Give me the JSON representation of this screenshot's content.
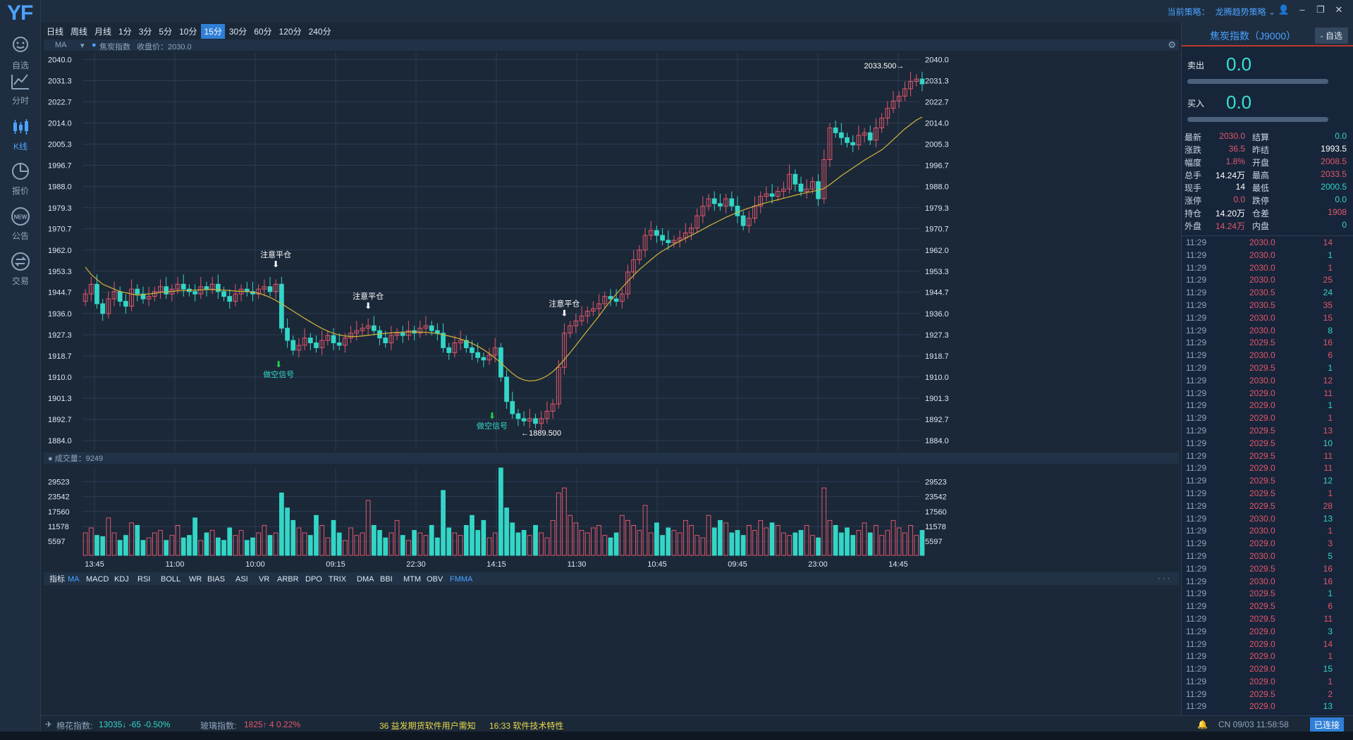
{
  "app": {
    "logo": "YF"
  },
  "rail": [
    {
      "label": "自选",
      "icon": "smiley-icon"
    },
    {
      "label": "分时",
      "icon": "line-chart-icon"
    },
    {
      "label": "K线",
      "icon": "candlestick-icon"
    },
    {
      "label": "报价",
      "icon": "pie-chart-icon"
    },
    {
      "label": "公告",
      "icon": "new-badge-icon"
    },
    {
      "label": "交易",
      "icon": "exchange-icon"
    }
  ],
  "topbar": {
    "strategy_label": "当前策略：",
    "strategy_value": "龙腾趋势策略",
    "win_user": "👤",
    "win_min": "–",
    "win_max": "❐",
    "win_close": "✕"
  },
  "periods": [
    "日线",
    "周线",
    "月线",
    "1分",
    "3分",
    "5分",
    "10分",
    "15分",
    "30分",
    "60分",
    "120分",
    "240分"
  ],
  "active_period": "15分",
  "ma_row": {
    "label": "MA",
    "title": "焦炭指数",
    "close_label": "收盘价：2030.0"
  },
  "indicators": [
    "指标",
    "MA",
    "MACD",
    "KDJ",
    "RSI",
    "BOLL",
    "WR",
    "BIAS",
    "ASI",
    "VR",
    "ARBR",
    "DPO",
    "TRIX",
    "DMA",
    "BBI",
    "MTM",
    "OBV",
    "FMMA"
  ],
  "volume_header": "成交量：9249",
  "chart_data": {
    "type": "candlestick",
    "title": "焦炭指数",
    "y_ticks": [
      2040.0,
      2031.3,
      2022.7,
      2014.0,
      2005.3,
      1996.7,
      1988.0,
      1979.3,
      1970.7,
      1962.0,
      1953.3,
      1944.7,
      1936.0,
      1927.3,
      1918.7,
      1910.0,
      1901.3,
      1892.7,
      1884.0
    ],
    "ylim": [
      1880,
      2043
    ],
    "x_labels": [
      "13:45",
      "11:00",
      "10:00",
      "09:15",
      "22:30",
      "14:15",
      "11:30",
      "10:45",
      "09:45",
      "23:00",
      "14:45"
    ],
    "vol_ticks": [
      29523,
      23542,
      17560,
      11578,
      5597
    ],
    "vol_max": 35000,
    "annotations": [
      {
        "text": "注意平仓",
        "idx": 33,
        "kind": "close"
      },
      {
        "text": "做空信号",
        "idx": 33,
        "kind": "short"
      },
      {
        "text": "注意平仓",
        "idx": 49,
        "kind": "close"
      },
      {
        "text": "做空信号",
        "idx": 70,
        "kind": "short"
      },
      {
        "text": "注意平仓",
        "idx": 83,
        "kind": "close"
      }
    ],
    "high_label": "2033.500→",
    "low_label": "←1889.500",
    "closes": [
      1944,
      1948,
      1940,
      1936,
      1942,
      1945,
      1941,
      1939,
      1946,
      1944,
      1942,
      1943,
      1945,
      1947,
      1944,
      1946,
      1948,
      1946,
      1945,
      1944,
      1947,
      1946,
      1948,
      1945,
      1943,
      1941,
      1944,
      1946,
      1945,
      1944,
      1946,
      1947,
      1945,
      1948,
      1930,
      1925,
      1921,
      1923,
      1926,
      1924,
      1922,
      1925,
      1927,
      1924,
      1923,
      1926,
      1928,
      1929,
      1930,
      1931,
      1929,
      1926,
      1924,
      1927,
      1928,
      1927,
      1929,
      1928,
      1930,
      1931,
      1929,
      1928,
      1922,
      1920,
      1924,
      1925,
      1922,
      1920,
      1918,
      1917,
      1919,
      1922,
      1910,
      1900,
      1895,
      1893,
      1892,
      1893,
      1891,
      1893,
      1896,
      1899,
      1914,
      1928,
      1931,
      1933,
      1935,
      1937,
      1938,
      1940,
      1943,
      1942,
      1941,
      1944,
      1953,
      1958,
      1962,
      1968,
      1970,
      1968,
      1966,
      1965,
      1966,
      1967,
      1969,
      1971,
      1976,
      1980,
      1983,
      1981,
      1980,
      1983,
      1980,
      1976,
      1972,
      1975,
      1980,
      1984,
      1985,
      1984,
      1986,
      1987,
      1993,
      1989,
      1986,
      1987,
      1990,
      1983,
      1999,
      2012,
      2010,
      2008,
      2006,
      2005,
      2009,
      2010,
      2007,
      2012,
      2016,
      2020,
      2023,
      2025,
      2028,
      2031,
      2032,
      2030
    ],
    "ma": [
      1955,
      1952,
      1950,
      1948,
      1947,
      1946,
      1945,
      1944.5,
      1944,
      1943.5,
      1943.8,
      1944,
      1944.3,
      1944.6,
      1944.9,
      1945.1,
      1945.3,
      1945.4,
      1945.5,
      1945.6,
      1945.7,
      1945.8,
      1945.8,
      1945.7,
      1945.6,
      1945.4,
      1945.2,
      1945.1,
      1945.0,
      1944.8,
      1944.3,
      1943.6,
      1942.6,
      1941.4,
      1940.0,
      1938.5,
      1937.0,
      1935.5,
      1934.0,
      1932.6,
      1931.2,
      1929.9,
      1928.8,
      1927.9,
      1927.2,
      1926.8,
      1926.6,
      1926.6,
      1926.8,
      1927.1,
      1927.4,
      1927.7,
      1927.9,
      1928.1,
      1928.3,
      1928.4,
      1928.5,
      1928.5,
      1928.4,
      1928.3,
      1928.1,
      1927.8,
      1927.3,
      1926.8,
      1926.2,
      1925.6,
      1924.8,
      1923.8,
      1922.6,
      1921.2,
      1919.6,
      1917.8,
      1915.8,
      1913.6,
      1911.5,
      1909.8,
      1908.8,
      1908.4,
      1908.6,
      1909.3,
      1910.5,
      1912.2,
      1914.5,
      1917.2,
      1920.0,
      1923.0,
      1926.0,
      1929.0,
      1932.0,
      1935.0,
      1938.2,
      1941.2,
      1944.0,
      1946.6,
      1949.2,
      1951.6,
      1954.0,
      1956.0,
      1958.0,
      1960.0,
      1961.6,
      1963.0,
      1964.4,
      1965.6,
      1966.8,
      1968.0,
      1969.2,
      1970.5,
      1971.8,
      1973.0,
      1974.2,
      1975.4,
      1976.4,
      1977.4,
      1978.4,
      1979.2,
      1980.0,
      1980.7,
      1981.4,
      1982.0,
      1982.6,
      1983.2,
      1983.8,
      1984.4,
      1985.0,
      1985.5,
      1986.0,
      1986.5,
      1987.2,
      1988.8,
      1990.6,
      1992.4,
      1994.0,
      1995.6,
      1997.2,
      1998.8,
      2000.2,
      2001.6,
      2003.0,
      2005.0,
      2007.2,
      2009.4,
      2011.6,
      2013.4,
      2015.2,
      2016.4
    ],
    "volumes": [
      9000,
      11000,
      8000,
      7500,
      15000,
      9000,
      6000,
      8000,
      13000,
      12000,
      6000,
      7000,
      9000,
      10000,
      6000,
      8000,
      12000,
      7000,
      8000,
      15000,
      6000,
      9000,
      10000,
      7000,
      6000,
      11000,
      8000,
      10000,
      6000,
      7000,
      9000,
      12000,
      8000,
      9000,
      25000,
      19000,
      14000,
      11000,
      9000,
      8000,
      16000,
      12000,
      7000,
      14000,
      9000,
      6000,
      11000,
      8000,
      9000,
      22000,
      12000,
      10000,
      7000,
      9000,
      14000,
      8000,
      6000,
      10000,
      9000,
      8000,
      12000,
      7000,
      26000,
      11000,
      9000,
      8000,
      12000,
      16000,
      10000,
      14000,
      7000,
      9000,
      35000,
      19000,
      13000,
      9000,
      10000,
      8000,
      12000,
      9000,
      7000,
      14000,
      25000,
      27000,
      16000,
      13000,
      10000,
      9000,
      11000,
      12000,
      8000,
      7000,
      9000,
      16000,
      14000,
      12000,
      10000,
      20000,
      9000,
      13000,
      8000,
      11000,
      10000,
      9000,
      14000,
      12000,
      8000,
      7000,
      16000,
      11000,
      14000,
      13000,
      9000,
      10000,
      8000,
      12000,
      10000,
      14000,
      11000,
      13000,
      12000,
      9000,
      8000,
      9000,
      10000,
      12000,
      8000,
      7000,
      27000,
      14000,
      12000,
      9000,
      11000,
      8000,
      10000,
      13000,
      9000,
      12000,
      8000,
      10000,
      14000,
      11000,
      9000,
      12000,
      8000,
      10000
    ]
  },
  "quote": {
    "title": "焦炭指数（J9000）",
    "btn": "- 自选",
    "sell_label": "卖出",
    "sell_val": "0.0",
    "buy_label": "买入",
    "buy_val": "0.0",
    "stats": [
      [
        "最新",
        "2030.0",
        "结算",
        "0.0"
      ],
      [
        "涨跌",
        "36.5",
        "昨结",
        "1993.5"
      ],
      [
        "幅度",
        "1.8%",
        "开盘",
        "2008.5"
      ],
      [
        "总手",
        "14.24万",
        "最高",
        "2033.5"
      ],
      [
        "现手",
        "14",
        "最低",
        "2000.5"
      ],
      [
        "涨停",
        "0.0",
        "跌停",
        "0.0"
      ],
      [
        "持仓",
        "14.20万",
        "仓差",
        "1908"
      ],
      [
        "外盘",
        "14.24万",
        "内盘",
        "0"
      ]
    ],
    "ticks": [
      [
        "11:29",
        "2030.0",
        "14"
      ],
      [
        "11:29",
        "2030.0",
        "1"
      ],
      [
        "11:29",
        "2030.0",
        "1"
      ],
      [
        "11:29",
        "2030.0",
        "25"
      ],
      [
        "11:29",
        "2030.5",
        "24"
      ],
      [
        "11:29",
        "2030.5",
        "35"
      ],
      [
        "11:29",
        "2030.0",
        "15"
      ],
      [
        "11:29",
        "2030.0",
        "8"
      ],
      [
        "11:29",
        "2029.5",
        "16"
      ],
      [
        "11:29",
        "2030.0",
        "6"
      ],
      [
        "11:29",
        "2029.5",
        "1"
      ],
      [
        "11:29",
        "2030.0",
        "12"
      ],
      [
        "11:29",
        "2029.0",
        "11"
      ],
      [
        "11:29",
        "2029.0",
        "1"
      ],
      [
        "11:29",
        "2029.0",
        "1"
      ],
      [
        "11:29",
        "2029.5",
        "13"
      ],
      [
        "11:29",
        "2029.5",
        "10"
      ],
      [
        "11:29",
        "2029.5",
        "11"
      ],
      [
        "11:29",
        "2029.0",
        "11"
      ],
      [
        "11:29",
        "2029.5",
        "12"
      ],
      [
        "11:29",
        "2029.5",
        "1"
      ],
      [
        "11:29",
        "2029.5",
        "28"
      ],
      [
        "11:29",
        "2030.0",
        "13"
      ],
      [
        "11:29",
        "2030.0",
        "1"
      ],
      [
        "11:29",
        "2029.0",
        "3"
      ],
      [
        "11:29",
        "2030.0",
        "5"
      ],
      [
        "11:29",
        "2029.5",
        "16"
      ],
      [
        "11:29",
        "2030.0",
        "16"
      ],
      [
        "11:29",
        "2029.5",
        "1"
      ],
      [
        "11:29",
        "2029.5",
        "6"
      ],
      [
        "11:29",
        "2029.5",
        "11"
      ],
      [
        "11:29",
        "2029.0",
        "3"
      ],
      [
        "11:29",
        "2029.0",
        "14"
      ],
      [
        "11:29",
        "2029.0",
        "1"
      ],
      [
        "11:29",
        "2029.0",
        "15"
      ],
      [
        "11:29",
        "2029.0",
        "1"
      ],
      [
        "11:29",
        "2029.5",
        "2"
      ],
      [
        "11:29",
        "2029.0",
        "13"
      ]
    ]
  },
  "status": {
    "s1_label": "棉花指数:",
    "s1_val": "13035↓ -65 -0.50%",
    "s2_label": "玻璃指数:",
    "s2_val": "1825↑ 4 0.22%",
    "news1": "36 益发期货软件用户需知",
    "news2": "16:33 软件技术特性",
    "clock": "CN 09/03 11:58:58",
    "conn": "已连接"
  },
  "colors": {
    "up": "#e2566a",
    "down": "#33d6c6",
    "ma": "#d4b437",
    "grid": "#2a3d55",
    "bg": "#1b2838"
  }
}
